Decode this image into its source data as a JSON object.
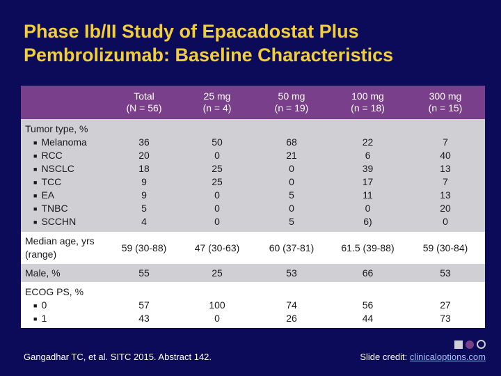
{
  "title": {
    "line1": "Phase Ib/II Study of Epacadostat Plus",
    "line2": "Pembrolizumab: Baseline Characteristics"
  },
  "table": {
    "headers": [
      {
        "line1": "",
        "line2": ""
      },
      {
        "line1": "Total",
        "line2": "(N = 56)"
      },
      {
        "line1": "25 mg",
        "line2": "(n = 4)"
      },
      {
        "line1": "50 mg",
        "line2": "(n = 19)"
      },
      {
        "line1": "100 mg",
        "line2": "(n = 18)"
      },
      {
        "line1": "300 mg",
        "line2": "(n = 15)"
      }
    ],
    "tumor": {
      "label": "Tumor type, %",
      "subs": [
        "Melanoma",
        "RCC",
        "NSCLC",
        "TCC",
        "EA",
        "TNBC",
        "SCCHN"
      ],
      "cols": [
        [
          "36",
          "20",
          "18",
          "9",
          "9",
          "5",
          "4"
        ],
        [
          "50",
          "0",
          "25",
          "25",
          "0",
          "0",
          "0"
        ],
        [
          "68",
          "21",
          "0",
          "0",
          "5",
          "0",
          "5"
        ],
        [
          "22",
          "6",
          "39",
          "17",
          "11",
          "0",
          "6)"
        ],
        [
          "7",
          "40",
          "13",
          "7",
          "13",
          "20",
          "0"
        ]
      ]
    },
    "age": {
      "label_line1": "Median age, yrs",
      "label_line2": "(range)",
      "values": [
        "59 (30-88)",
        "47 (30-63)",
        "60 (37-81)",
        "61.5 (39-88)",
        "59 (30-84)"
      ]
    },
    "male": {
      "label": "Male, %",
      "values": [
        "55",
        "25",
        "53",
        "66",
        "53"
      ]
    },
    "ecog": {
      "label": "ECOG PS, %",
      "subs": [
        "0",
        "1"
      ],
      "cols": [
        [
          "57",
          "43"
        ],
        [
          "100",
          "0"
        ],
        [
          "74",
          "26"
        ],
        [
          "56",
          "44"
        ],
        [
          "27",
          "73"
        ]
      ]
    }
  },
  "footer": {
    "citation": "Gangadhar TC, et al. SITC 2015. Abstract 142.",
    "credit_prefix": "Slide credit: ",
    "credit_link": "clinicaloptions.com"
  },
  "colors": {
    "background": "#0b0b5a",
    "title": "#f2cf3a",
    "header": "#7a3f8a",
    "row_shaded": "#cfcfd4"
  }
}
